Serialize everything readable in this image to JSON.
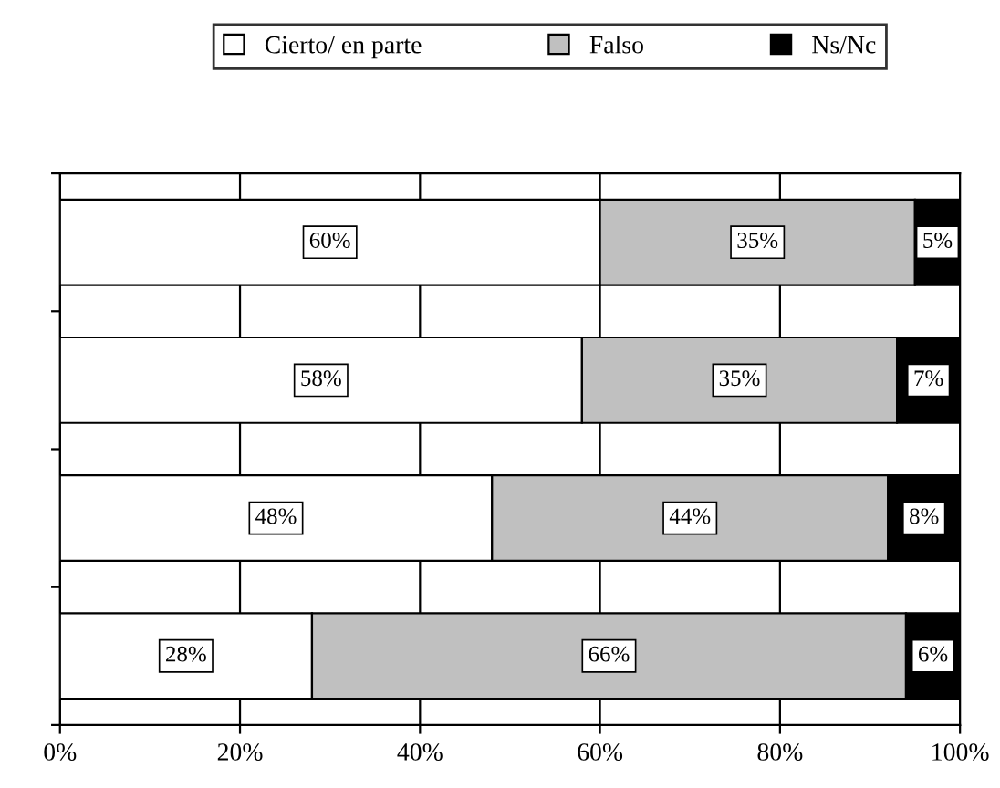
{
  "chart_data": {
    "type": "bar",
    "orientation": "horizontal",
    "stacked": true,
    "categories": [
      null,
      null,
      null,
      null
    ],
    "series": [
      {
        "name": "Cierto/ en parte",
        "color": "#ffffff",
        "values": [
          60,
          58,
          48,
          28
        ],
        "value_labels": [
          "60%",
          "58%",
          "48%",
          "28%"
        ]
      },
      {
        "name": "Falso",
        "color": "#c0c0c0",
        "values": [
          35,
          35,
          44,
          66
        ],
        "value_labels": [
          "35%",
          "35%",
          "44%",
          "66%"
        ]
      },
      {
        "name": "Ns/Nc",
        "color": "#000000",
        "values": [
          5,
          7,
          8,
          6
        ],
        "value_labels": [
          "5%",
          "7%",
          "8%",
          "6%"
        ]
      }
    ],
    "xlim": [
      0,
      100
    ],
    "xticks": [
      {
        "value": 0,
        "label": "0%"
      },
      {
        "value": 20,
        "label": "20%"
      },
      {
        "value": 40,
        "label": "40%"
      },
      {
        "value": 60,
        "label": "60%"
      },
      {
        "value": 80,
        "label": "80%"
      },
      {
        "value": 100,
        "label": "100%"
      }
    ],
    "grid": "x",
    "legend": "top"
  }
}
